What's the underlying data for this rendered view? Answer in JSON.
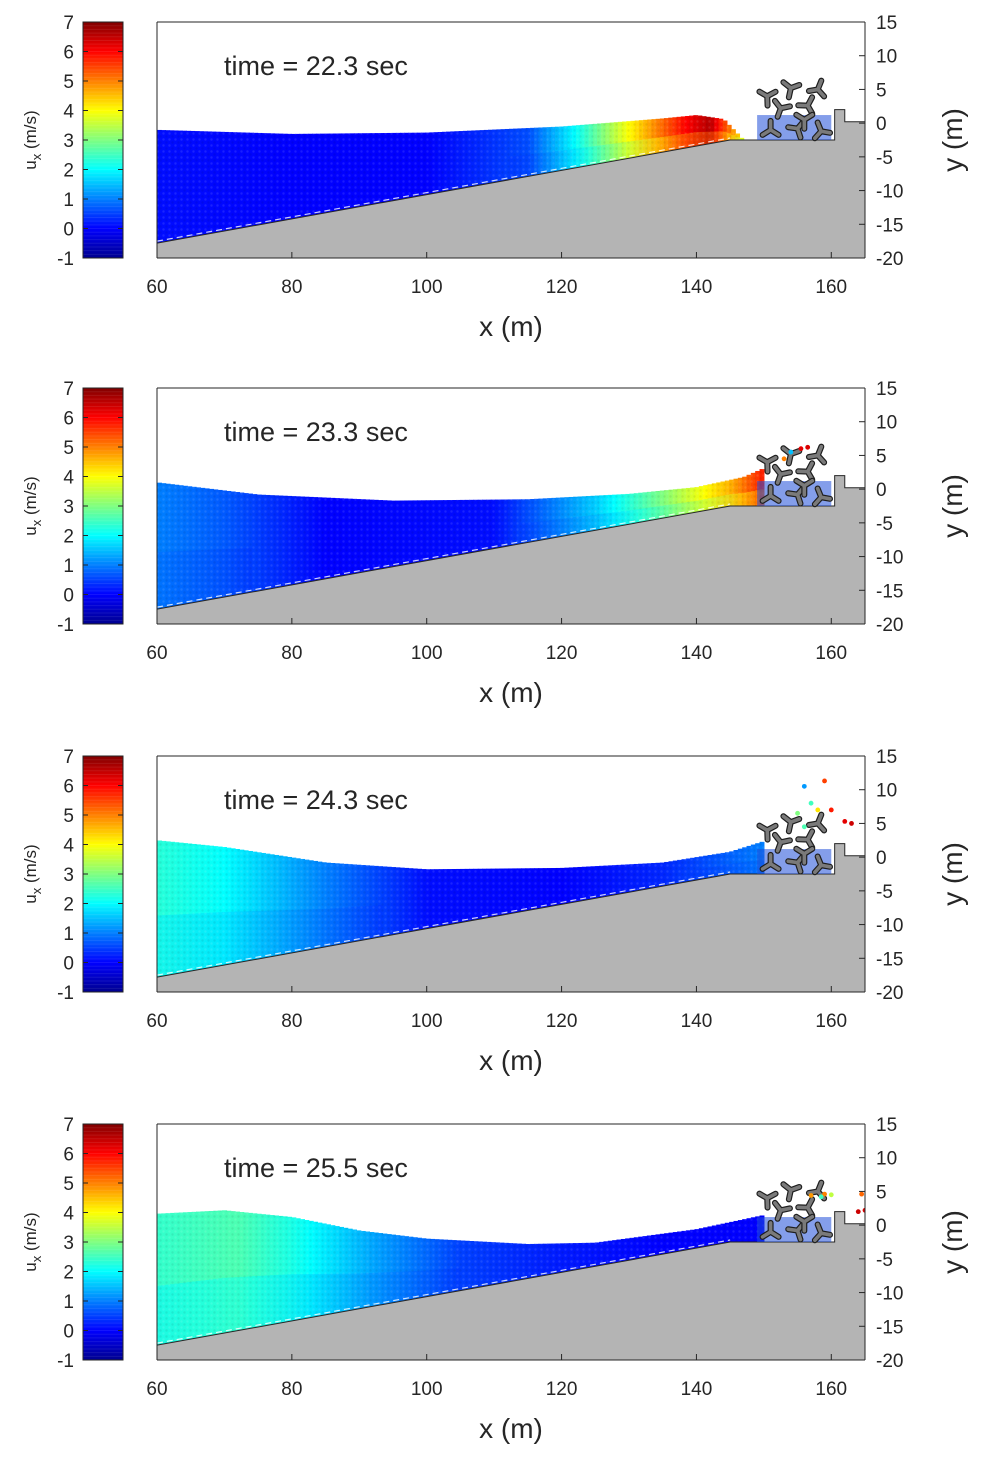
{
  "colors": {
    "ground": "#b4b4b4",
    "axis": "#262626",
    "armour": "#7a7a7a",
    "armour_edge": "#1e1e1e"
  },
  "chart_data": [
    {
      "type": "heatmap",
      "title": "time = 22.3 sec",
      "time_sec": 22.3,
      "xlabel": "x (m)",
      "ylabel": "y (m)",
      "colorbar_label": "u_x (m/s)",
      "colorbar_label_main": "u",
      "colorbar_label_sub": "x",
      "colorbar_label_unit": " (m/s)",
      "colorbar_range": [
        -1,
        7
      ],
      "colorbar_ticks": [
        "7",
        "6",
        "5",
        "4",
        "3",
        "2",
        "1",
        "0",
        "-1"
      ],
      "xlim": [
        60,
        165
      ],
      "ylim": [
        -20,
        15
      ],
      "xticks": [
        "60",
        "80",
        "100",
        "120",
        "140",
        "160"
      ],
      "yticks": [
        "15",
        "10",
        "5",
        "0",
        "-5",
        "-10",
        "-15",
        "-20"
      ],
      "free_surface": [
        [
          60,
          -1.0
        ],
        [
          80,
          -1.6
        ],
        [
          100,
          -1.4
        ],
        [
          120,
          -0.5
        ],
        [
          135,
          0.7
        ],
        [
          140,
          1.2
        ],
        [
          144,
          0.6
        ],
        [
          147,
          -2.5
        ]
      ],
      "velocity_profile": [
        [
          60,
          0.1
        ],
        [
          80,
          0.0
        ],
        [
          100,
          0.0
        ],
        [
          115,
          0.6
        ],
        [
          122,
          2.0
        ],
        [
          130,
          4.0
        ],
        [
          138,
          5.9
        ],
        [
          142,
          6.6
        ],
        [
          146,
          4.5
        ],
        [
          148,
          2.5
        ]
      ],
      "splash": []
    },
    {
      "type": "heatmap",
      "title": "time = 23.3 sec",
      "time_sec": 23.3,
      "xlabel": "x (m)",
      "ylabel": "y (m)",
      "colorbar_label": "u_x (m/s)",
      "colorbar_label_main": "u",
      "colorbar_label_sub": "x",
      "colorbar_label_unit": " (m/s)",
      "colorbar_range": [
        -1,
        7
      ],
      "colorbar_ticks": [
        "7",
        "6",
        "5",
        "4",
        "3",
        "2",
        "1",
        "0",
        "-1"
      ],
      "xlim": [
        60,
        165
      ],
      "ylim": [
        -20,
        15
      ],
      "xticks": [
        "60",
        "80",
        "100",
        "120",
        "140",
        "160"
      ],
      "yticks": [
        "15",
        "10",
        "5",
        "0",
        "-5",
        "-10",
        "-15",
        "-20"
      ],
      "free_surface": [
        [
          60,
          1.0
        ],
        [
          75,
          -0.8
        ],
        [
          95,
          -1.7
        ],
        [
          115,
          -1.5
        ],
        [
          130,
          -0.7
        ],
        [
          140,
          0.3
        ],
        [
          147,
          1.8
        ],
        [
          152,
          4.0
        ],
        [
          154,
          5.0
        ]
      ],
      "velocity_profile": [
        [
          60,
          1.0
        ],
        [
          70,
          0.7
        ],
        [
          85,
          0.0
        ],
        [
          110,
          0.1
        ],
        [
          125,
          1.6
        ],
        [
          135,
          3.0
        ],
        [
          145,
          4.6
        ],
        [
          152,
          6.3
        ],
        [
          155,
          6.0
        ]
      ],
      "splash": [
        [
          154,
          5.5,
          1.5
        ],
        [
          155.5,
          6.0,
          6.2
        ],
        [
          156.5,
          6.2,
          6.3
        ],
        [
          153,
          4.5,
          5.0
        ]
      ]
    },
    {
      "type": "heatmap",
      "title": "time = 24.3 sec",
      "time_sec": 24.3,
      "xlabel": "x (m)",
      "ylabel": "y (m)",
      "colorbar_label": "u_x (m/s)",
      "colorbar_label_main": "u",
      "colorbar_label_sub": "x",
      "colorbar_label_unit": " (m/s)",
      "colorbar_range": [
        -1,
        7
      ],
      "colorbar_ticks": [
        "7",
        "6",
        "5",
        "4",
        "3",
        "2",
        "1",
        "0",
        "-1"
      ],
      "xlim": [
        60,
        165
      ],
      "ylim": [
        -20,
        15
      ],
      "xticks": [
        "60",
        "80",
        "100",
        "120",
        "140",
        "160"
      ],
      "yticks": [
        "15",
        "10",
        "5",
        "0",
        "-5",
        "-10",
        "-15",
        "-20"
      ],
      "free_surface": [
        [
          60,
          2.5
        ],
        [
          70,
          1.5
        ],
        [
          85,
          -0.8
        ],
        [
          100,
          -1.8
        ],
        [
          120,
          -1.6
        ],
        [
          135,
          -0.8
        ],
        [
          145,
          0.8
        ],
        [
          152,
          3.0
        ],
        [
          155,
          4.5
        ]
      ],
      "velocity_profile": [
        [
          60,
          2.3
        ],
        [
          70,
          2.0
        ],
        [
          85,
          1.0
        ],
        [
          100,
          0.1
        ],
        [
          120,
          0.0
        ],
        [
          135,
          0.3
        ],
        [
          150,
          1.0
        ],
        [
          155,
          1.5
        ]
      ],
      "splash": [
        [
          156,
          10.5,
          1.2
        ],
        [
          159,
          11.3,
          5.5
        ],
        [
          157,
          8.0,
          2.5
        ],
        [
          158,
          7.0,
          4.2
        ],
        [
          160,
          7.0,
          5.8
        ],
        [
          163,
          5.0,
          6.4
        ],
        [
          162,
          5.3,
          6.2
        ],
        [
          155,
          6.5,
          3.0
        ],
        [
          156,
          4.5,
          2.6
        ]
      ]
    },
    {
      "type": "heatmap",
      "title": "time = 25.5 sec",
      "time_sec": 25.5,
      "xlabel": "x (m)",
      "ylabel": "y (m)",
      "colorbar_label": "u_x (m/s)",
      "colorbar_label_main": "u",
      "colorbar_label_sub": "x",
      "colorbar_label_unit": " (m/s)",
      "colorbar_range": [
        -1,
        7
      ],
      "colorbar_ticks": [
        "7",
        "6",
        "5",
        "4",
        "3",
        "2",
        "1",
        "0",
        "-1"
      ],
      "xlim": [
        60,
        165
      ],
      "ylim": [
        -20,
        15
      ],
      "xticks": [
        "60",
        "80",
        "100",
        "120",
        "140",
        "160"
      ],
      "yticks": [
        "15",
        "10",
        "5",
        "0",
        "-5",
        "-10",
        "-15",
        "-20"
      ],
      "free_surface": [
        [
          60,
          1.7
        ],
        [
          70,
          2.2
        ],
        [
          80,
          1.2
        ],
        [
          90,
          -0.8
        ],
        [
          100,
          -2.0
        ],
        [
          115,
          -2.8
        ],
        [
          125,
          -2.6
        ],
        [
          140,
          -0.6
        ],
        [
          150,
          1.5
        ],
        [
          155,
          3.5
        ]
      ],
      "velocity_profile": [
        [
          60,
          2.4
        ],
        [
          72,
          2.6
        ],
        [
          80,
          2.2
        ],
        [
          92,
          1.3
        ],
        [
          105,
          0.5
        ],
        [
          120,
          0.2
        ],
        [
          135,
          0.0
        ],
        [
          150,
          0.0
        ],
        [
          155,
          0.5
        ]
      ],
      "splash": [
        [
          157,
          4.4,
          4.8
        ],
        [
          159,
          4.6,
          5.0
        ],
        [
          160,
          4.5,
          3.5
        ],
        [
          164,
          2.0,
          6.4
        ],
        [
          165,
          2.2,
          6.3
        ],
        [
          164.5,
          4.6,
          5.2
        ],
        [
          158.5,
          4.2,
          2.5
        ]
      ]
    }
  ]
}
